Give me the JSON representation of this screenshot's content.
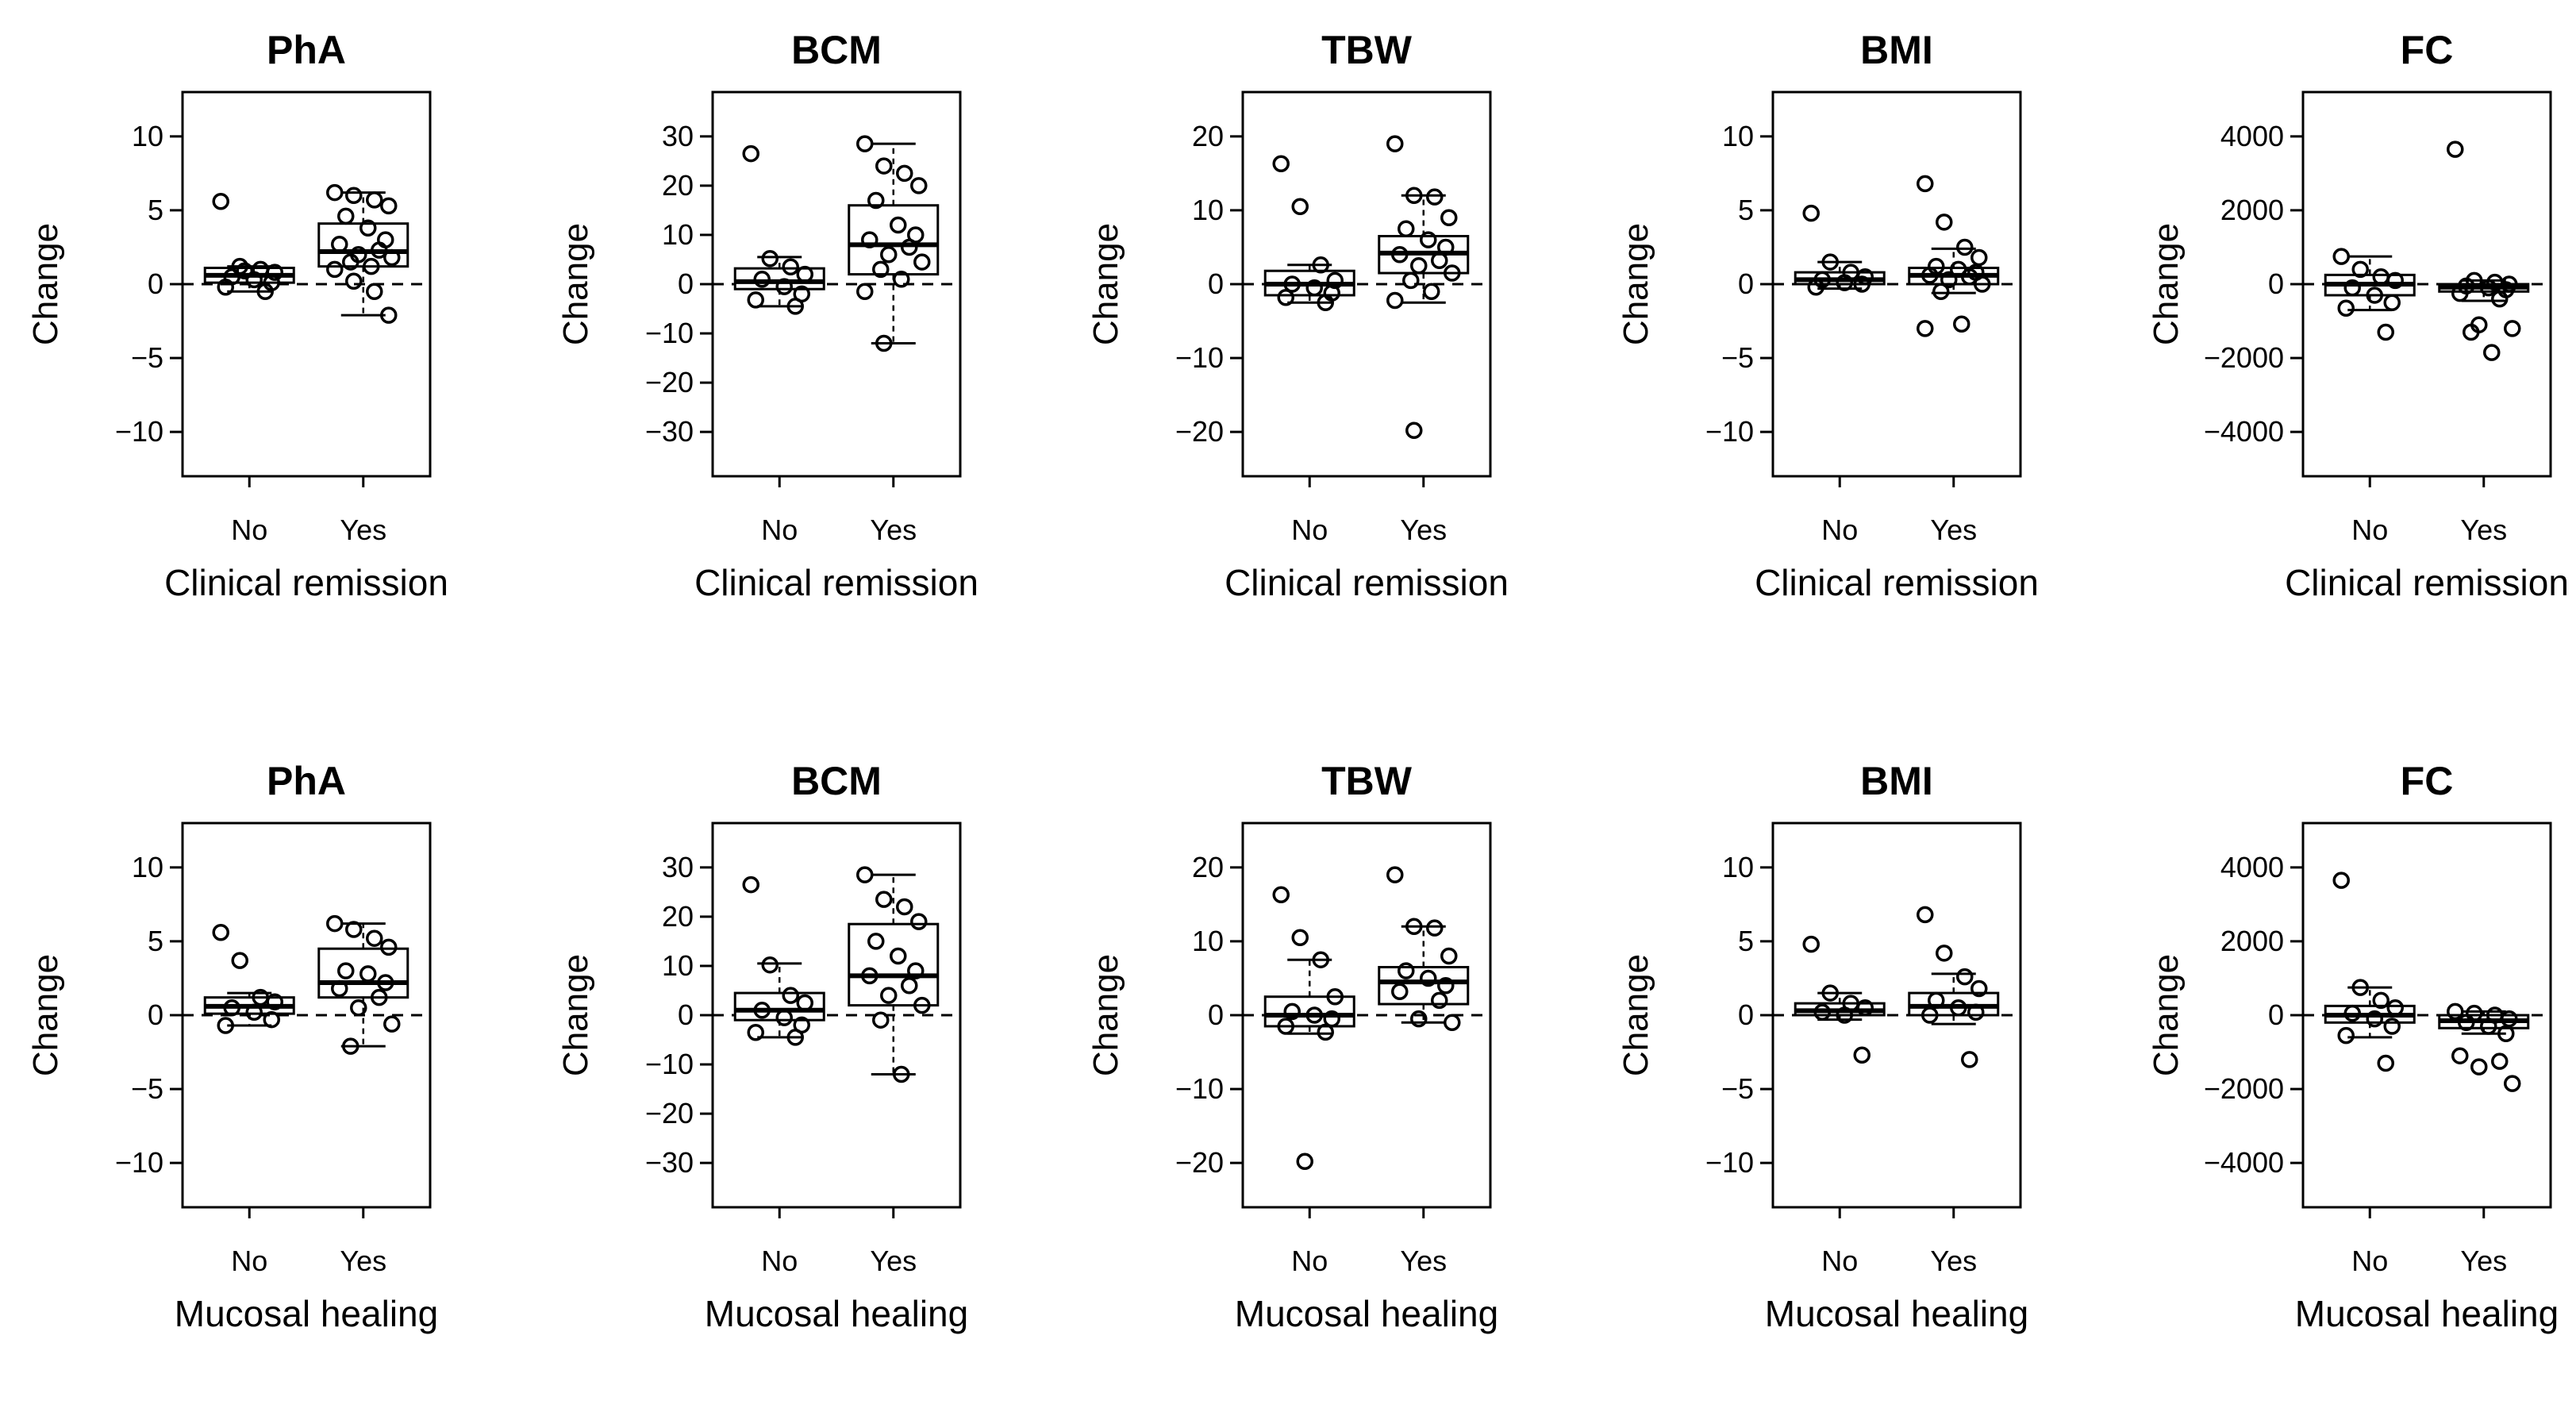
{
  "figure": {
    "y_axis_label": "Change",
    "group_labels": [
      "No",
      "Yes"
    ]
  },
  "chart_data": [
    {
      "type": "box",
      "title": "PhA",
      "xlabel": "Clinical remission",
      "ylabel": "Change",
      "categories": [
        "No",
        "Yes"
      ],
      "ylim": [
        -13,
        13
      ],
      "yticks": [
        -10,
        -5,
        0,
        5,
        10
      ],
      "boxes": [
        {
          "q1": 0.1,
          "median": 0.6,
          "q3": 1.1,
          "whisker_low": -0.5,
          "whisker_high": 1.2
        },
        {
          "q1": 1.2,
          "median": 2.2,
          "q3": 4.1,
          "whisker_low": -2.1,
          "whisker_high": 6.2
        }
      ],
      "points": [
        [
          5.6,
          1.2,
          1.0,
          0.8,
          0.5,
          0.3,
          0.1,
          -0.2,
          -0.5,
          0.9
        ],
        [
          6.2,
          6.0,
          5.7,
          5.3,
          4.6,
          3.8,
          3.0,
          2.7,
          2.3,
          2.0,
          1.8,
          1.5,
          1.2,
          1.0,
          0.2,
          -0.5,
          -2.1
        ]
      ]
    },
    {
      "type": "box",
      "title": "BCM",
      "xlabel": "Clinical remission",
      "ylabel": "Change",
      "categories": [
        "No",
        "Yes"
      ],
      "ylim": [
        -39,
        39
      ],
      "yticks": [
        -30,
        -20,
        -10,
        0,
        10,
        20,
        30
      ],
      "boxes": [
        {
          "q1": -1,
          "median": 0.5,
          "q3": 3.2,
          "whisker_low": -4.5,
          "whisker_high": 5.5
        },
        {
          "q1": 2,
          "median": 8,
          "q3": 16,
          "whisker_low": -12,
          "whisker_high": 28.5
        }
      ],
      "points": [
        [
          26.5,
          5.2,
          3.5,
          2.0,
          1.0,
          -0.5,
          -2.0,
          -3.2,
          -4.5
        ],
        [
          28.5,
          24.0,
          22.5,
          20.0,
          17.0,
          12.0,
          10.0,
          9.0,
          7.5,
          6.0,
          4.5,
          3.0,
          1.0,
          -1.5,
          -12.0
        ]
      ]
    },
    {
      "type": "box",
      "title": "TBW",
      "xlabel": "Clinical remission",
      "ylabel": "Change",
      "categories": [
        "No",
        "Yes"
      ],
      "ylim": [
        -26,
        26
      ],
      "yticks": [
        -20,
        -10,
        0,
        10,
        20
      ],
      "boxes": [
        {
          "q1": -1.5,
          "median": 0,
          "q3": 1.8,
          "whisker_low": -2.5,
          "whisker_high": 2.6
        },
        {
          "q1": 1.5,
          "median": 4.2,
          "q3": 6.5,
          "whisker_low": -2.5,
          "whisker_high": 12
        }
      ],
      "points": [
        [
          16.3,
          10.5,
          2.6,
          0.5,
          0.0,
          -0.5,
          -1.2,
          -1.8,
          -2.5
        ],
        [
          19.0,
          12.0,
          11.8,
          9.0,
          7.5,
          6.0,
          5.0,
          4.0,
          3.2,
          2.5,
          1.5,
          0.5,
          -1.0,
          -2.2,
          -19.8
        ]
      ]
    },
    {
      "type": "box",
      "title": "BMI",
      "xlabel": "Clinical remission",
      "ylabel": "Change",
      "categories": [
        "No",
        "Yes"
      ],
      "ylim": [
        -13,
        13
      ],
      "yticks": [
        -10,
        -5,
        0,
        5,
        10
      ],
      "boxes": [
        {
          "q1": 0,
          "median": 0.3,
          "q3": 0.8,
          "whisker_low": -0.3,
          "whisker_high": 1.5
        },
        {
          "q1": 0,
          "median": 0.6,
          "q3": 1.1,
          "whisker_low": -0.6,
          "whisker_high": 2.4
        }
      ],
      "points": [
        [
          4.8,
          1.5,
          0.8,
          0.5,
          0.3,
          0.1,
          0.0,
          -0.2
        ],
        [
          6.8,
          4.2,
          2.5,
          1.8,
          1.2,
          1.0,
          0.8,
          0.6,
          0.5,
          0.3,
          0.0,
          -0.5,
          -2.7,
          -3.0
        ]
      ]
    },
    {
      "type": "box",
      "title": "FC",
      "xlabel": "Clinical remission",
      "ylabel": "Change",
      "categories": [
        "No",
        "Yes"
      ],
      "ylim": [
        -5200,
        5200
      ],
      "yticks": [
        -4000,
        -2000,
        0,
        2000,
        4000
      ],
      "boxes": [
        {
          "q1": -300,
          "median": 0,
          "q3": 250,
          "whisker_low": -700,
          "whisker_high": 750
        },
        {
          "q1": -200,
          "median": -80,
          "q3": 0,
          "whisker_low": -450,
          "whisker_high": 100
        }
      ],
      "points": [
        [
          750,
          400,
          200,
          100,
          -100,
          -300,
          -500,
          -650,
          -1300
        ],
        [
          3650,
          100,
          50,
          0,
          -50,
          -100,
          -150,
          -250,
          -400,
          -1100,
          -1200,
          -1300,
          -1850
        ]
      ]
    },
    {
      "type": "box",
      "title": "PhA",
      "xlabel": "Mucosal healing",
      "ylabel": "Change",
      "categories": [
        "No",
        "Yes"
      ],
      "ylim": [
        -13,
        13
      ],
      "yticks": [
        -10,
        -5,
        0,
        5,
        10
      ],
      "boxes": [
        {
          "q1": 0.1,
          "median": 0.6,
          "q3": 1.2,
          "whisker_low": -0.7,
          "whisker_high": 1.5
        },
        {
          "q1": 1.2,
          "median": 2.2,
          "q3": 4.5,
          "whisker_low": -2.1,
          "whisker_high": 6.2
        }
      ],
      "points": [
        [
          5.6,
          3.7,
          1.2,
          0.9,
          0.5,
          0.2,
          -0.3,
          -0.7
        ],
        [
          6.2,
          5.8,
          5.2,
          4.6,
          3.0,
          2.8,
          2.2,
          1.8,
          1.2,
          0.5,
          -0.6,
          -2.1
        ]
      ]
    },
    {
      "type": "box",
      "title": "BCM",
      "xlabel": "Mucosal healing",
      "ylabel": "Change",
      "categories": [
        "No",
        "Yes"
      ],
      "ylim": [
        -39,
        39
      ],
      "yticks": [
        -30,
        -20,
        -10,
        0,
        10,
        20,
        30
      ],
      "boxes": [
        {
          "q1": -1,
          "median": 1,
          "q3": 4.5,
          "whisker_low": -4.5,
          "whisker_high": 10.5
        },
        {
          "q1": 2,
          "median": 8,
          "q3": 18.5,
          "whisker_low": -12,
          "whisker_high": 28.5
        }
      ],
      "points": [
        [
          26.5,
          10.2,
          4.0,
          2.5,
          1.0,
          -0.5,
          -2.0,
          -3.5,
          -4.5
        ],
        [
          28.5,
          23.5,
          22.0,
          19.0,
          15.0,
          12.0,
          9.0,
          8.0,
          6.0,
          4.0,
          2.0,
          -1.0,
          -12.0
        ]
      ]
    },
    {
      "type": "box",
      "title": "TBW",
      "xlabel": "Mucosal healing",
      "ylabel": "Change",
      "categories": [
        "No",
        "Yes"
      ],
      "ylim": [
        -26,
        26
      ],
      "yticks": [
        -20,
        -10,
        0,
        10,
        20
      ],
      "boxes": [
        {
          "q1": -1.5,
          "median": 0,
          "q3": 2.5,
          "whisker_low": -2.5,
          "whisker_high": 7.5
        },
        {
          "q1": 1.5,
          "median": 4.5,
          "q3": 6.5,
          "whisker_low": -1,
          "whisker_high": 12
        }
      ],
      "points": [
        [
          16.3,
          10.5,
          7.5,
          2.5,
          0.5,
          0.0,
          -0.5,
          -1.5,
          -2.3,
          -19.8
        ],
        [
          19.0,
          12.0,
          11.8,
          8.0,
          6.0,
          5.0,
          4.0,
          3.2,
          2.0,
          -0.5,
          -1.0
        ]
      ]
    },
    {
      "type": "box",
      "title": "BMI",
      "xlabel": "Mucosal healing",
      "ylabel": "Change",
      "categories": [
        "No",
        "Yes"
      ],
      "ylim": [
        -13,
        13
      ],
      "yticks": [
        -10,
        -5,
        0,
        5,
        10
      ],
      "boxes": [
        {
          "q1": 0,
          "median": 0.3,
          "q3": 0.8,
          "whisker_low": -0.3,
          "whisker_high": 1.5
        },
        {
          "q1": 0,
          "median": 0.6,
          "q3": 1.5,
          "whisker_low": -0.6,
          "whisker_high": 2.8
        }
      ],
      "points": [
        [
          4.8,
          1.5,
          0.8,
          0.5,
          0.2,
          0.0,
          -2.7
        ],
        [
          6.8,
          4.2,
          2.6,
          1.8,
          1.0,
          0.5,
          0.2,
          0.0,
          -3.0
        ]
      ]
    },
    {
      "type": "box",
      "title": "FC",
      "xlabel": "Mucosal healing",
      "ylabel": "Change",
      "categories": [
        "No",
        "Yes"
      ],
      "ylim": [
        -5200,
        5200
      ],
      "yticks": [
        -4000,
        -2000,
        0,
        2000,
        4000
      ],
      "boxes": [
        {
          "q1": -200,
          "median": 0,
          "q3": 250,
          "whisker_low": -600,
          "whisker_high": 750
        },
        {
          "q1": -350,
          "median": -150,
          "q3": 0,
          "whisker_low": -500,
          "whisker_high": 100
        }
      ],
      "points": [
        [
          3650,
          750,
          400,
          200,
          50,
          -100,
          -300,
          -550,
          -1300
        ],
        [
          100,
          50,
          0,
          -100,
          -200,
          -300,
          -500,
          -1100,
          -1250,
          -1400,
          -1850
        ]
      ]
    }
  ]
}
